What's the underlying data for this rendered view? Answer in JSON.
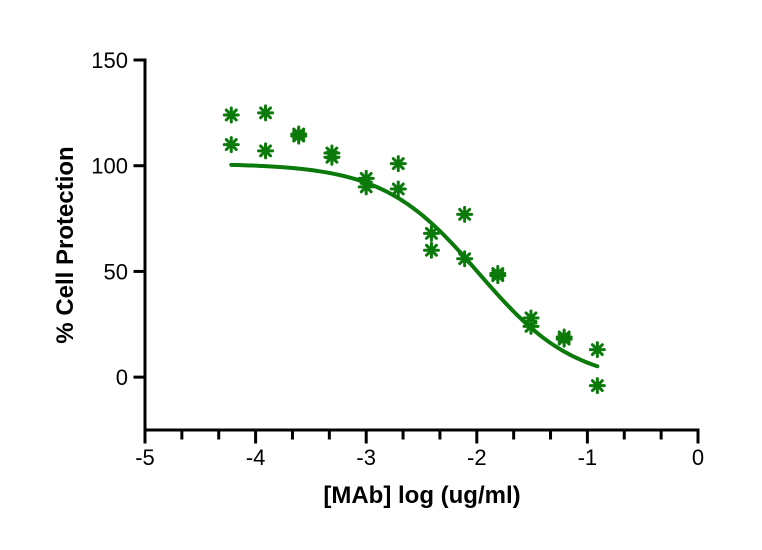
{
  "chart_data": {
    "type": "scatter",
    "title": "",
    "xlabel": "[MAb] log (ug/ml)",
    "ylabel": "% Cell Protection",
    "xlim": [
      -5,
      0
    ],
    "ylim": [
      -25,
      150
    ],
    "x_ticks": [
      -5,
      -4,
      -3,
      -2,
      -1,
      0
    ],
    "x_tick_labels": [
      "-5",
      "-4",
      "-3",
      "-2",
      "-1",
      "0"
    ],
    "y_ticks": [
      0,
      50,
      100,
      150
    ],
    "y_tick_labels": [
      "0",
      "50",
      "100",
      "150"
    ],
    "x_minor_tick_step": 0.333,
    "grid": false,
    "legend": "none",
    "color": "#0b7a0b",
    "points": [
      {
        "x": -4.22,
        "y": 124
      },
      {
        "x": -4.22,
        "y": 110
      },
      {
        "x": -3.91,
        "y": 125
      },
      {
        "x": -3.91,
        "y": 107
      },
      {
        "x": -3.61,
        "y": 115
      },
      {
        "x": -3.61,
        "y": 114
      },
      {
        "x": -3.31,
        "y": 106
      },
      {
        "x": -3.31,
        "y": 104
      },
      {
        "x": -3.0,
        "y": 94
      },
      {
        "x": -3.0,
        "y": 90
      },
      {
        "x": -2.71,
        "y": 101
      },
      {
        "x": -2.71,
        "y": 89
      },
      {
        "x": -2.41,
        "y": 68
      },
      {
        "x": -2.41,
        "y": 60
      },
      {
        "x": -2.11,
        "y": 77
      },
      {
        "x": -2.11,
        "y": 56
      },
      {
        "x": -1.81,
        "y": 49
      },
      {
        "x": -1.81,
        "y": 48
      },
      {
        "x": -1.51,
        "y": 28
      },
      {
        "x": -1.51,
        "y": 24
      },
      {
        "x": -1.21,
        "y": 19
      },
      {
        "x": -1.21,
        "y": 18
      },
      {
        "x": -0.91,
        "y": 13
      },
      {
        "x": -0.91,
        "y": -4
      }
    ],
    "fit": {
      "model": "sigmoidal dose-response",
      "top": 101,
      "bottom": -3,
      "log_ec50": -1.98,
      "hill_slope": -1.0,
      "x_range": [
        -4.22,
        -0.91
      ]
    }
  }
}
